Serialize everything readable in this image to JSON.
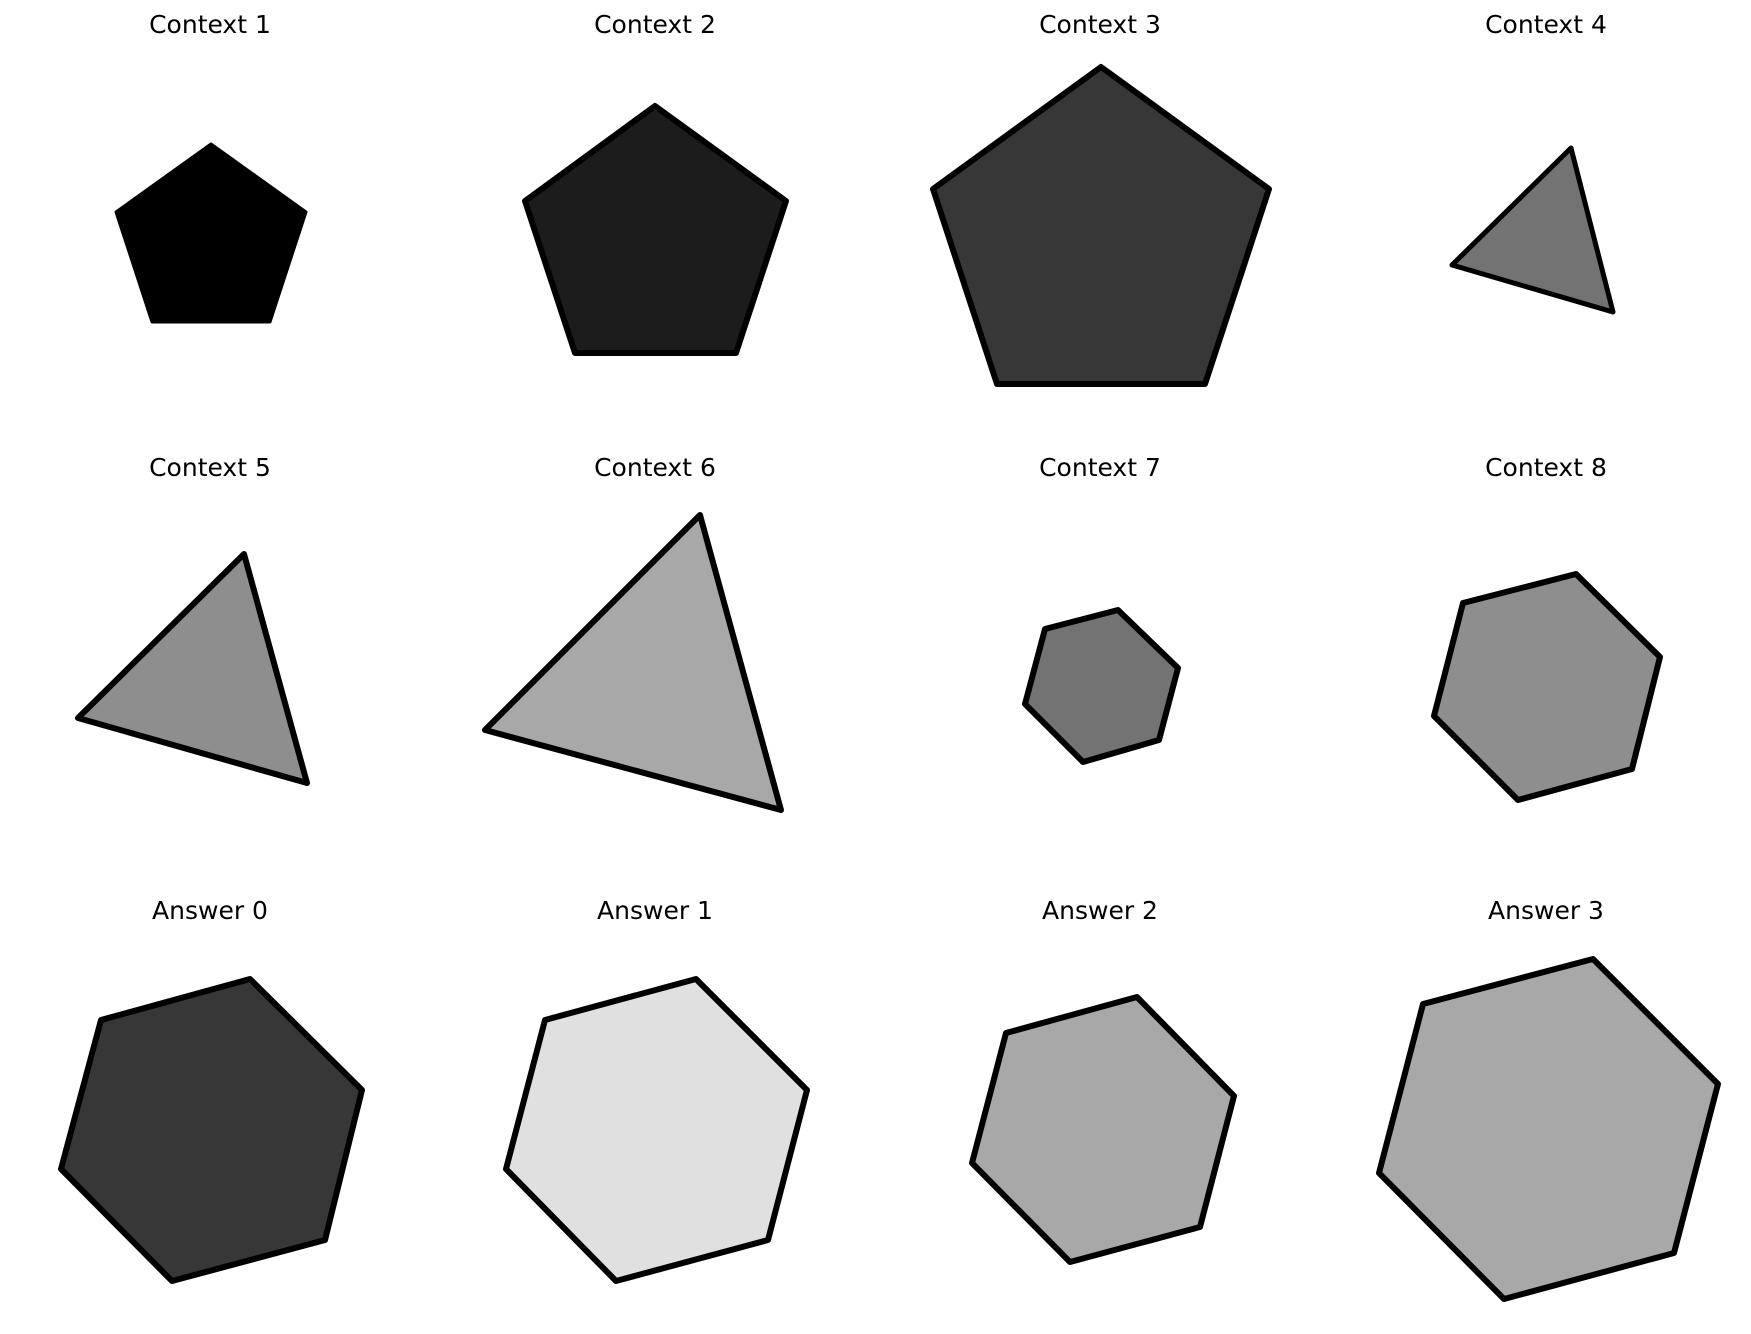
{
  "panels": [
    {
      "title": "Context 1",
      "shape": "pentagon",
      "fill": "#000000"
    },
    {
      "title": "Context 2",
      "shape": "pentagon",
      "fill": "#1c1c1c"
    },
    {
      "title": "Context 3",
      "shape": "pentagon",
      "fill": "#373737"
    },
    {
      "title": "Context 4",
      "shape": "triangle",
      "fill": "#737373"
    },
    {
      "title": "Context 5",
      "shape": "triangle",
      "fill": "#8e8e8e"
    },
    {
      "title": "Context 6",
      "shape": "triangle",
      "fill": "#a8a8a8"
    },
    {
      "title": "Context 7",
      "shape": "hexagon",
      "fill": "#737373"
    },
    {
      "title": "Context 8",
      "shape": "hexagon",
      "fill": "#8e8e8e"
    },
    {
      "title": "Answer 0",
      "shape": "hexagon",
      "fill": "#373737"
    },
    {
      "title": "Answer 1",
      "shape": "hexagon",
      "fill": "#e0e0e0"
    },
    {
      "title": "Answer 2",
      "shape": "hexagon",
      "fill": "#a8a8a8"
    },
    {
      "title": "Answer 3",
      "shape": "hexagon",
      "fill": "#a8a8a8"
    }
  ],
  "outline_color": "#000000"
}
